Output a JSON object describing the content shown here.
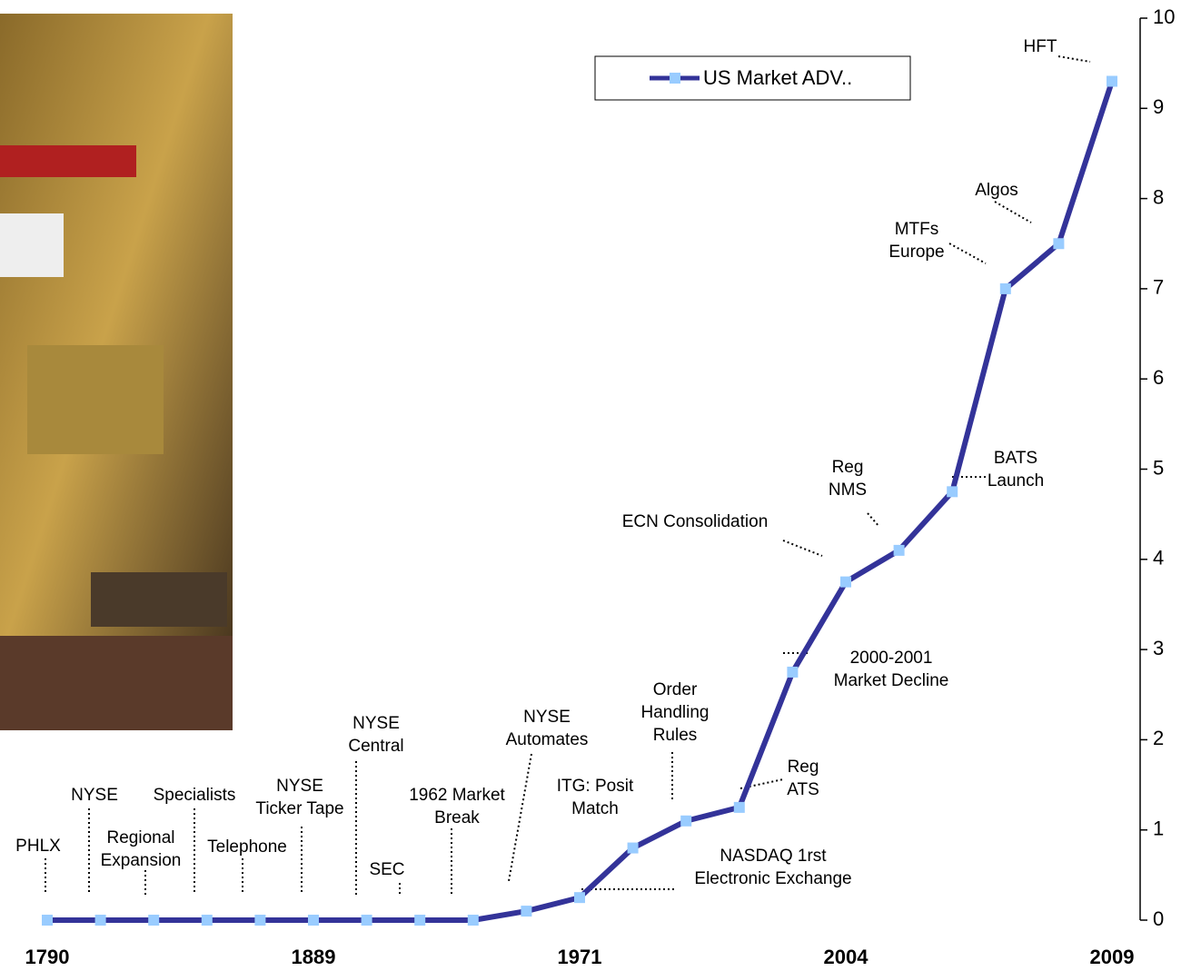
{
  "chart_data": {
    "type": "line",
    "categories": [
      "1790",
      null,
      null,
      null,
      null,
      "1889",
      null,
      null,
      null,
      null,
      "1971",
      null,
      null,
      null,
      null,
      "2004",
      null,
      null,
      null,
      null,
      "2009"
    ],
    "series": [
      {
        "name": "US Market ADV..",
        "color": "#333399",
        "marker_color": "#99ccff",
        "values": [
          0,
          0,
          0,
          0,
          0,
          0,
          0,
          0,
          0,
          0.1,
          0.25,
          0.8,
          1.1,
          1.25,
          2.75,
          3.75,
          4.1,
          4.75,
          7.0,
          7.5,
          9.3
        ]
      }
    ],
    "ylim": [
      0,
      10
    ],
    "yticks": [
      0,
      1,
      2,
      3,
      4,
      5,
      6,
      7,
      8,
      9,
      10
    ],
    "annotations": [
      [
        "PHLX"
      ],
      [
        "NYSE"
      ],
      [
        "Regional",
        "Expansion"
      ],
      [
        "Specialists"
      ],
      [
        "Telephone"
      ],
      [
        "NYSE",
        "Ticker Tape"
      ],
      [
        "NYSE",
        "Central"
      ],
      [
        "SEC"
      ],
      [
        "1962 Market",
        "Break"
      ],
      [
        "NYSE",
        "Automates"
      ],
      [
        "ITG: Posit",
        "Match"
      ],
      [
        "Order",
        "Handling",
        "Rules"
      ],
      [
        "NASDAQ 1rst",
        "Electronic Exchange"
      ],
      [
        "Reg",
        "ATS"
      ],
      [
        "2000-2001",
        "Market Decline"
      ],
      [
        "ECN Consolidation"
      ],
      [
        "Reg",
        "NMS"
      ],
      [
        "BATS",
        "Launch"
      ],
      [
        "MTFs",
        "Europe"
      ],
      [
        "Algos"
      ],
      [
        "HFT"
      ]
    ]
  }
}
